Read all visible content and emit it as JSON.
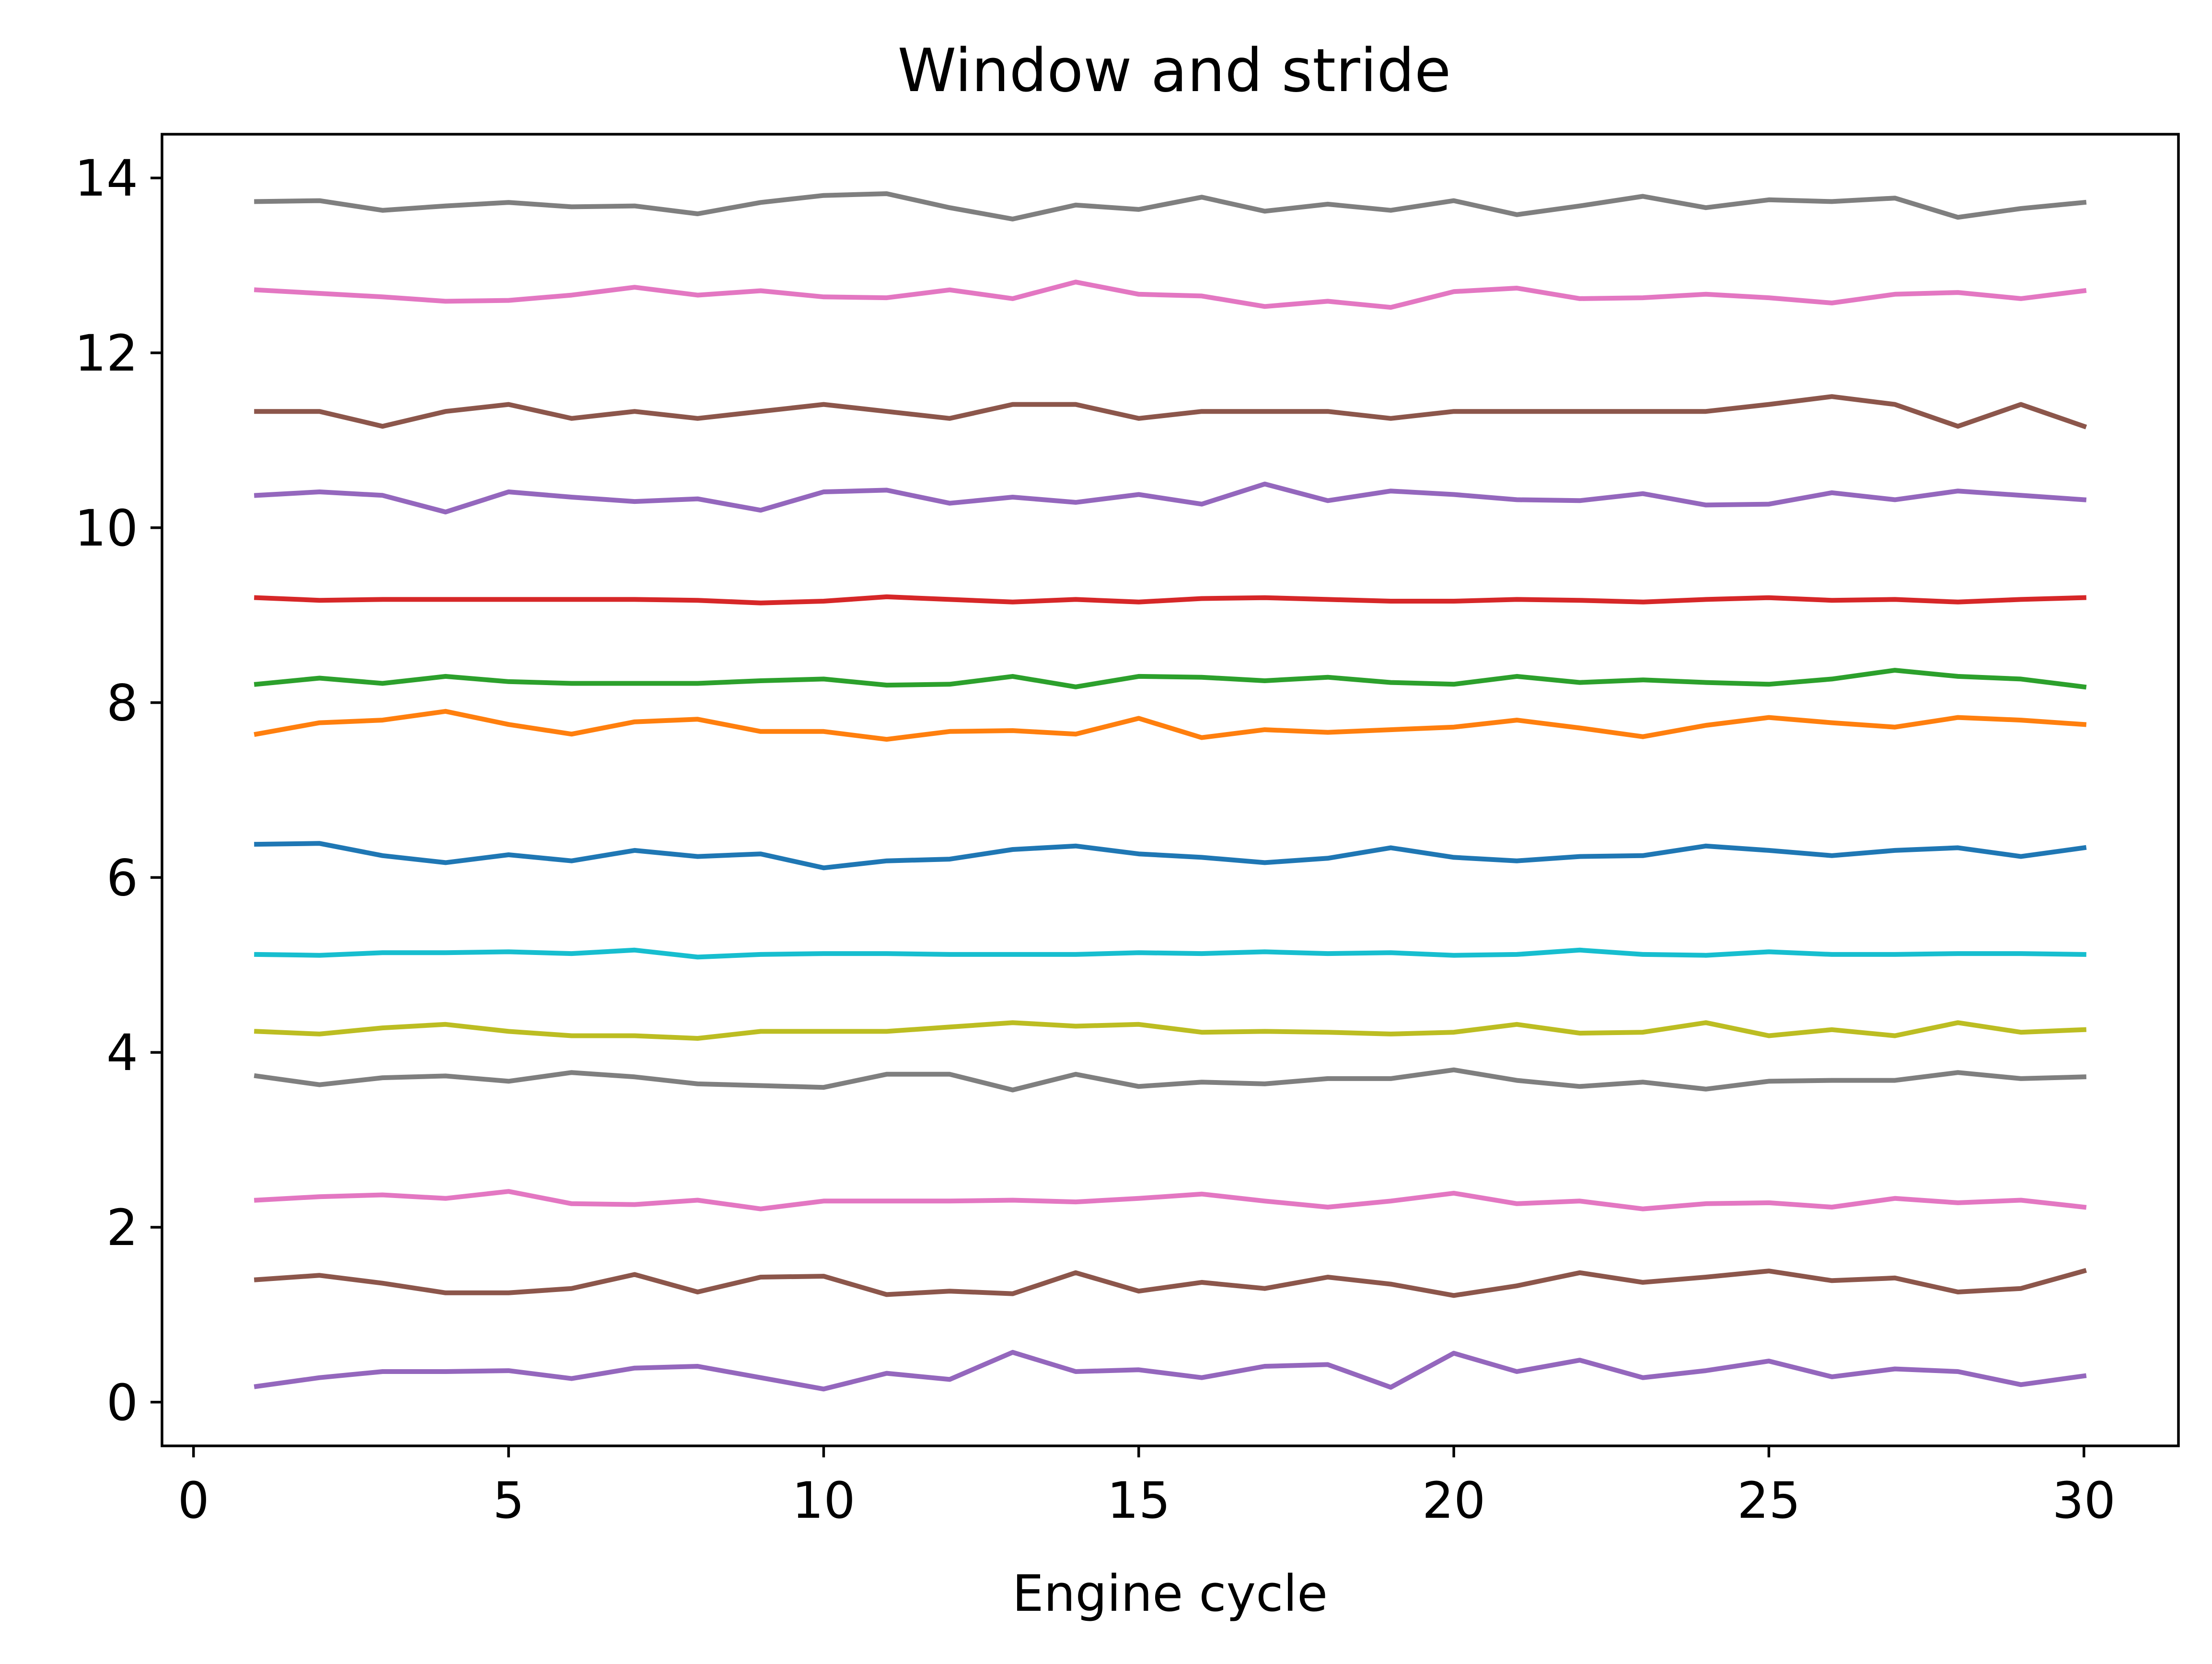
{
  "chart_data": {
    "type": "line",
    "title": "Window and stride",
    "xlabel": "Engine cycle",
    "ylabel": "",
    "xlim": [
      -0.5,
      31.5
    ],
    "ylim": [
      -0.5,
      14.5
    ],
    "xticks": [
      0,
      5,
      10,
      15,
      20,
      25,
      30
    ],
    "yticks": [
      0,
      2,
      4,
      6,
      8,
      10,
      12,
      14
    ],
    "grid": false,
    "legend": "none",
    "x": [
      1,
      2,
      3,
      4,
      5,
      6,
      7,
      8,
      9,
      10,
      11,
      12,
      13,
      14,
      15,
      16,
      17,
      18,
      19,
      20,
      21,
      22,
      23,
      24,
      25,
      26,
      27,
      28,
      29,
      30
    ],
    "series": [
      {
        "color": "#1f77b4",
        "values": [
          6.38,
          6.39,
          6.25,
          6.17,
          6.26,
          6.19,
          6.31,
          6.24,
          6.27,
          6.11,
          6.19,
          6.21,
          6.32,
          6.36,
          6.27,
          6.23,
          6.17,
          6.22,
          6.34,
          6.23,
          6.19,
          6.24,
          6.25,
          6.36,
          6.31,
          6.25,
          6.31,
          6.34,
          6.24,
          6.34
        ]
      },
      {
        "color": "#ff7f0e",
        "values": [
          7.64,
          7.77,
          7.8,
          7.9,
          7.75,
          7.64,
          7.78,
          7.81,
          7.67,
          7.67,
          7.58,
          7.67,
          7.68,
          7.64,
          7.82,
          7.6,
          7.69,
          7.66,
          7.69,
          7.72,
          7.8,
          7.71,
          7.61,
          7.74,
          7.83,
          7.77,
          7.72,
          7.83,
          7.8,
          7.75
        ]
      },
      {
        "color": "#2ca02c",
        "values": [
          8.21,
          8.28,
          8.22,
          8.3,
          8.24,
          8.22,
          8.22,
          8.22,
          8.25,
          8.27,
          8.2,
          8.21,
          8.3,
          8.18,
          8.3,
          8.29,
          8.25,
          8.29,
          8.23,
          8.21,
          8.3,
          8.23,
          8.26,
          8.23,
          8.21,
          8.27,
          8.37,
          8.3,
          8.27,
          8.18
        ]
      },
      {
        "color": "#d62728",
        "values": [
          9.2,
          9.17,
          9.18,
          9.18,
          9.18,
          9.18,
          9.18,
          9.17,
          9.14,
          9.16,
          9.21,
          9.18,
          9.15,
          9.18,
          9.15,
          9.19,
          9.2,
          9.18,
          9.16,
          9.16,
          9.18,
          9.17,
          9.15,
          9.18,
          9.2,
          9.17,
          9.18,
          9.15,
          9.18,
          9.2
        ]
      },
      {
        "color": "#9467bd",
        "values": [
          10.37,
          10.41,
          10.37,
          10.18,
          10.41,
          10.35,
          10.3,
          10.33,
          10.2,
          10.41,
          10.43,
          10.28,
          10.35,
          10.29,
          10.38,
          10.27,
          10.5,
          10.31,
          10.42,
          10.38,
          10.32,
          10.31,
          10.39,
          10.26,
          10.27,
          10.4,
          10.32,
          10.42,
          10.37,
          10.32
        ]
      },
      {
        "color": "#8c564b",
        "values": [
          11.33,
          11.33,
          11.16,
          11.33,
          11.41,
          11.25,
          11.33,
          11.25,
          11.33,
          11.41,
          11.33,
          11.25,
          11.41,
          11.41,
          11.25,
          11.33,
          11.33,
          11.33,
          11.25,
          11.33,
          11.33,
          11.33,
          11.33,
          11.33,
          11.41,
          11.5,
          11.41,
          11.16,
          11.41,
          11.16
        ]
      },
      {
        "color": "#e377c2",
        "values": [
          12.72,
          12.68,
          12.64,
          12.59,
          12.6,
          12.66,
          12.75,
          12.66,
          12.71,
          12.64,
          12.63,
          12.72,
          12.62,
          12.81,
          12.67,
          12.65,
          12.53,
          12.59,
          12.52,
          12.7,
          12.74,
          12.62,
          12.63,
          12.67,
          12.63,
          12.57,
          12.67,
          12.69,
          12.62,
          12.71
        ]
      },
      {
        "color": "#7f7f7f",
        "values": [
          13.73,
          13.74,
          13.63,
          13.68,
          13.72,
          13.67,
          13.68,
          13.59,
          13.72,
          13.8,
          13.82,
          13.66,
          13.53,
          13.69,
          13.64,
          13.78,
          13.62,
          13.7,
          13.63,
          13.74,
          13.58,
          13.68,
          13.79,
          13.66,
          13.75,
          13.73,
          13.77,
          13.55,
          13.65,
          13.72
        ]
      },
      {
        "color": "#bcbd22",
        "values": [
          4.24,
          4.21,
          4.28,
          4.32,
          4.24,
          4.19,
          4.19,
          4.16,
          4.24,
          4.24,
          4.24,
          4.29,
          4.34,
          4.3,
          4.32,
          4.23,
          4.24,
          4.23,
          4.21,
          4.23,
          4.32,
          4.22,
          4.23,
          4.34,
          4.19,
          4.26,
          4.19,
          4.34,
          4.23,
          4.26
        ]
      },
      {
        "color": "#17becf",
        "values": [
          5.12,
          5.11,
          5.14,
          5.14,
          5.15,
          5.13,
          5.17,
          5.09,
          5.12,
          5.13,
          5.13,
          5.12,
          5.12,
          5.12,
          5.14,
          5.13,
          5.15,
          5.13,
          5.14,
          5.11,
          5.12,
          5.17,
          5.12,
          5.11,
          5.15,
          5.12,
          5.12,
          5.13,
          5.13,
          5.12
        ]
      },
      {
        "color": "#7f7f7f",
        "values": [
          3.73,
          3.63,
          3.71,
          3.73,
          3.67,
          3.77,
          3.72,
          3.64,
          3.62,
          3.6,
          3.75,
          3.75,
          3.57,
          3.75,
          3.61,
          3.66,
          3.64,
          3.7,
          3.7,
          3.8,
          3.68,
          3.61,
          3.66,
          3.58,
          3.67,
          3.68,
          3.68,
          3.77,
          3.7,
          3.72
        ]
      },
      {
        "color": "#e377c2",
        "values": [
          2.31,
          2.35,
          2.37,
          2.33,
          2.41,
          2.27,
          2.26,
          2.31,
          2.21,
          2.3,
          2.3,
          2.3,
          2.31,
          2.29,
          2.33,
          2.38,
          2.3,
          2.23,
          2.3,
          2.39,
          2.27,
          2.3,
          2.21,
          2.27,
          2.28,
          2.23,
          2.33,
          2.28,
          2.31,
          2.23
        ]
      },
      {
        "color": "#8c564b",
        "values": [
          1.4,
          1.45,
          1.36,
          1.25,
          1.25,
          1.3,
          1.46,
          1.26,
          1.43,
          1.44,
          1.23,
          1.27,
          1.24,
          1.48,
          1.27,
          1.37,
          1.3,
          1.43,
          1.35,
          1.22,
          1.33,
          1.48,
          1.37,
          1.43,
          1.5,
          1.39,
          1.42,
          1.26,
          1.3,
          1.5
        ]
      },
      {
        "color": "#9467bd",
        "values": [
          0.18,
          0.28,
          0.35,
          0.35,
          0.36,
          0.27,
          0.39,
          0.41,
          0.28,
          0.15,
          0.33,
          0.26,
          0.57,
          0.35,
          0.37,
          0.28,
          0.41,
          0.43,
          0.17,
          0.56,
          0.35,
          0.48,
          0.28,
          0.36,
          0.47,
          0.29,
          0.38,
          0.35,
          0.2,
          0.3
        ]
      }
    ]
  }
}
